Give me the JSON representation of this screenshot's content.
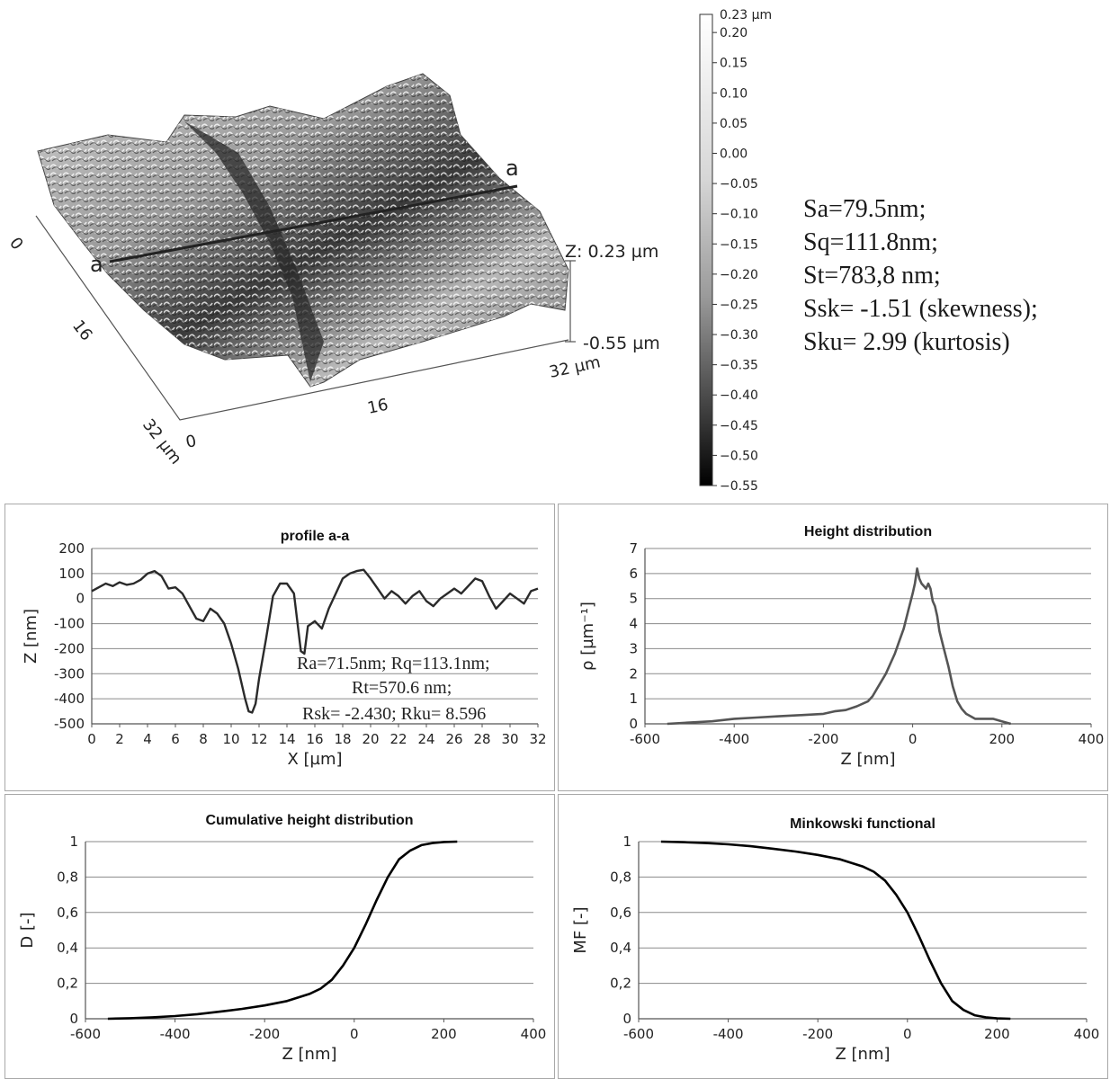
{
  "surface3d": {
    "profile_marker": "a",
    "x_ticks": [
      "0",
      "16",
      "32 µm"
    ],
    "y_ticks": [
      "0",
      "16",
      "32 µm"
    ],
    "z_top": "Z: 0.23 µm",
    "z_bottom": "-0.55 µm"
  },
  "colorbar": {
    "top_label": "0.23 µm",
    "ticks": [
      "0.20",
      "0.15",
      "0.10",
      "0.05",
      "0.00",
      "−0.05",
      "−0.10",
      "−0.15",
      "−0.20",
      "−0.25",
      "−0.30",
      "−0.35",
      "−0.40",
      "−0.45",
      "−0.50",
      "−0.55"
    ]
  },
  "stats": {
    "sa": "Sa=79.5nm;",
    "sq": "Sq=111.8nm;",
    "st": "St=783,8 nm;",
    "ssk": "Ssk= -1.51 (skewness);",
    "sku": "Sku= 2.99 (kurtosis)"
  },
  "profile_stats": {
    "line1": "Ra=71.5nm; Rq=113.1nm;",
    "line2": "Rt=570.6 nm;",
    "line3": "Rsk= -2.430; Rku= 8.596"
  },
  "chart_data": [
    {
      "type": "line",
      "title": "profile a-a",
      "xlabel": "X [µm]",
      "ylabel": "Z [nm]",
      "xlim": [
        0,
        32
      ],
      "ylim": [
        -500,
        200
      ],
      "x_ticks": [
        "0",
        "2",
        "4",
        "6",
        "8",
        "10",
        "12",
        "14",
        "16",
        "18",
        "20",
        "22",
        "24",
        "26",
        "28",
        "30",
        "32"
      ],
      "y_ticks": [
        "200",
        "100",
        "0",
        "-100",
        "-200",
        "-300",
        "-400",
        "-500"
      ],
      "x": [
        0,
        0.5,
        1,
        1.5,
        2,
        2.5,
        3,
        3.5,
        4,
        4.5,
        5,
        5.5,
        6,
        6.5,
        7,
        7.5,
        8,
        8.5,
        9,
        9.5,
        10,
        10.5,
        11,
        11.25,
        11.5,
        11.75,
        12,
        12.5,
        13,
        13.5,
        14,
        14.5,
        15,
        15.25,
        15.5,
        16,
        16.5,
        17,
        17.5,
        18,
        18.5,
        19,
        19.5,
        20,
        20.5,
        21,
        21.5,
        22,
        22.5,
        23,
        23.5,
        24,
        24.5,
        25,
        25.5,
        26,
        26.5,
        27,
        27.5,
        28,
        28.5,
        29,
        29.5,
        30,
        30.5,
        31,
        31.5,
        32
      ],
      "y": [
        30,
        45,
        60,
        50,
        65,
        55,
        60,
        75,
        100,
        110,
        90,
        40,
        45,
        20,
        -30,
        -80,
        -90,
        -40,
        -60,
        -100,
        -180,
        -280,
        -400,
        -450,
        -455,
        -420,
        -320,
        -160,
        10,
        60,
        60,
        20,
        -210,
        -220,
        -110,
        -90,
        -120,
        -40,
        20,
        80,
        100,
        110,
        115,
        80,
        40,
        0,
        30,
        10,
        -20,
        10,
        30,
        -10,
        -30,
        0,
        20,
        40,
        20,
        50,
        80,
        70,
        10,
        -40,
        -10,
        20,
        0,
        -20,
        30,
        40
      ]
    },
    {
      "type": "line",
      "title": "Height distribution",
      "xlabel": "Z [nm]",
      "ylabel": "ρ [µm⁻¹]",
      "xlim": [
        -600,
        400
      ],
      "ylim": [
        0,
        7
      ],
      "x_ticks": [
        "-600",
        "-400",
        "-200",
        "0",
        "200",
        "400"
      ],
      "y_ticks": [
        "7",
        "6",
        "5",
        "4",
        "3",
        "2",
        "1",
        "0"
      ],
      "x": [
        -550,
        -500,
        -450,
        -400,
        -350,
        -300,
        -250,
        -200,
        -175,
        -150,
        -125,
        -100,
        -90,
        -80,
        -70,
        -60,
        -50,
        -40,
        -30,
        -20,
        -10,
        0,
        5,
        10,
        15,
        20,
        25,
        30,
        35,
        40,
        45,
        50,
        55,
        60,
        70,
        80,
        90,
        100,
        110,
        120,
        130,
        140,
        160,
        180,
        200,
        220
      ],
      "y": [
        0.0,
        0.05,
        0.1,
        0.2,
        0.25,
        0.3,
        0.35,
        0.4,
        0.5,
        0.55,
        0.7,
        0.9,
        1.1,
        1.4,
        1.7,
        2.0,
        2.4,
        2.8,
        3.3,
        3.8,
        4.5,
        5.2,
        5.6,
        6.2,
        5.8,
        5.6,
        5.5,
        5.4,
        5.6,
        5.4,
        4.9,
        4.7,
        4.3,
        3.7,
        3.0,
        2.3,
        1.5,
        0.9,
        0.6,
        0.4,
        0.3,
        0.2,
        0.2,
        0.2,
        0.1,
        0.0
      ]
    },
    {
      "type": "line",
      "title": "Cumulative height distribution",
      "xlabel": "Z [nm]",
      "ylabel": "D [-]",
      "xlim": [
        -600,
        400
      ],
      "ylim": [
        0,
        1
      ],
      "x_ticks": [
        "-600",
        "-400",
        "-200",
        "0",
        "200",
        "400"
      ],
      "y_ticks": [
        "1",
        "0,8",
        "0,6",
        "0,4",
        "0,2",
        "0"
      ],
      "x": [
        -550,
        -500,
        -450,
        -400,
        -350,
        -300,
        -250,
        -200,
        -150,
        -100,
        -75,
        -50,
        -25,
        0,
        25,
        50,
        75,
        100,
        125,
        150,
        175,
        200,
        230
      ],
      "y": [
        0.0,
        0.003,
        0.008,
        0.015,
        0.026,
        0.04,
        0.056,
        0.075,
        0.1,
        0.14,
        0.17,
        0.22,
        0.3,
        0.4,
        0.53,
        0.67,
        0.8,
        0.9,
        0.95,
        0.98,
        0.992,
        0.998,
        1.0
      ]
    },
    {
      "type": "line",
      "title": "Minkowski functional",
      "xlabel": "Z [nm]",
      "ylabel": "MF [-]",
      "xlim": [
        -600,
        400
      ],
      "ylim": [
        0,
        1
      ],
      "x_ticks": [
        "-600",
        "-400",
        "-200",
        "0",
        "200",
        "400"
      ],
      "y_ticks": [
        "1",
        "0,8",
        "0,6",
        "0,4",
        "0,2",
        "0"
      ],
      "x": [
        -550,
        -500,
        -450,
        -400,
        -350,
        -300,
        -250,
        -200,
        -150,
        -100,
        -75,
        -50,
        -25,
        0,
        25,
        50,
        75,
        100,
        125,
        150,
        175,
        200,
        230
      ],
      "y": [
        1.0,
        0.997,
        0.992,
        0.985,
        0.974,
        0.96,
        0.944,
        0.925,
        0.9,
        0.86,
        0.83,
        0.78,
        0.7,
        0.6,
        0.47,
        0.33,
        0.2,
        0.1,
        0.05,
        0.02,
        0.008,
        0.002,
        0.0
      ]
    }
  ]
}
